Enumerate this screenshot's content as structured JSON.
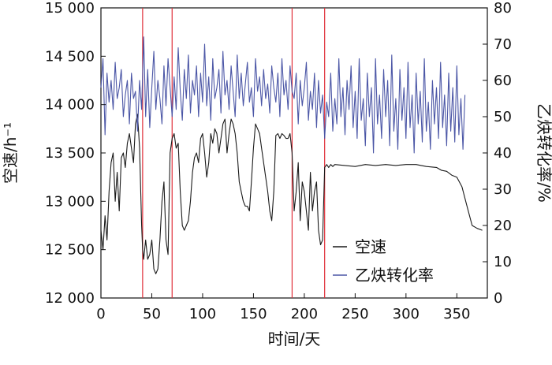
{
  "chart_data": {
    "type": "line",
    "xlabel": "时间/天",
    "ylabel_left": "空速/h⁻¹",
    "ylabel_right": "乙炔转化率/%",
    "xlim": [
      0,
      380
    ],
    "ylim_left": [
      12000,
      15000
    ],
    "ylim_right": [
      0,
      80
    ],
    "x_ticks": [
      "0",
      "50",
      "100",
      "150",
      "200",
      "250",
      "300",
      "350"
    ],
    "y_left_ticks": [
      "12 000",
      "12 500",
      "13 000",
      "13 500",
      "14 000",
      "14 500",
      "15 000"
    ],
    "y_right_ticks": [
      "0",
      "10",
      "20",
      "30",
      "40",
      "50",
      "60",
      "70",
      "80"
    ],
    "grid": false,
    "legend_position": "bottom-right",
    "vertical_markers": [
      41,
      70,
      188,
      220
    ],
    "marker_color": "#e0303a",
    "series": [
      {
        "name": "空速",
        "axis": "left",
        "color": "#1a1a1a",
        "x": [
          0,
          2,
          4,
          6,
          8,
          10,
          12,
          14,
          16,
          18,
          20,
          22,
          24,
          26,
          28,
          30,
          32,
          34,
          36,
          38,
          40,
          41,
          42,
          44,
          46,
          48,
          50,
          52,
          54,
          56,
          58,
          60,
          62,
          64,
          66,
          68,
          70,
          72,
          74,
          76,
          78,
          80,
          82,
          84,
          86,
          88,
          90,
          92,
          94,
          96,
          98,
          100,
          102,
          104,
          106,
          108,
          110,
          112,
          114,
          116,
          118,
          120,
          122,
          124,
          126,
          128,
          130,
          132,
          134,
          136,
          138,
          140,
          142,
          144,
          146,
          148,
          150,
          152,
          154,
          156,
          158,
          160,
          162,
          164,
          166,
          168,
          170,
          172,
          174,
          176,
          178,
          180,
          182,
          184,
          186,
          188,
          190,
          192,
          194,
          196,
          198,
          200,
          202,
          204,
          206,
          208,
          210,
          212,
          214,
          216,
          218,
          220,
          222,
          224,
          226,
          228,
          230,
          240,
          250,
          260,
          270,
          280,
          290,
          300,
          310,
          320,
          330,
          335,
          340,
          345,
          350,
          355,
          360,
          365,
          370,
          375
        ],
        "values": [
          12700,
          12500,
          12850,
          12600,
          13100,
          13400,
          13500,
          13000,
          13300,
          12900,
          13450,
          13500,
          13350,
          13600,
          13700,
          13550,
          13400,
          13800,
          13900,
          13550,
          12750,
          12500,
          12400,
          12600,
          12400,
          12450,
          12600,
          12300,
          12250,
          12300,
          12600,
          13000,
          13200,
          12600,
          12450,
          13500,
          13650,
          13700,
          13550,
          13600,
          13100,
          12750,
          12700,
          12750,
          12800,
          13000,
          13300,
          13450,
          13500,
          13400,
          13650,
          13700,
          13500,
          13250,
          13400,
          13700,
          13600,
          13750,
          13700,
          13500,
          13650,
          13800,
          13850,
          13500,
          13700,
          13850,
          13800,
          13700,
          13500,
          13200,
          13100,
          13000,
          12950,
          12950,
          12900,
          13200,
          13550,
          13800,
          13750,
          13700,
          13550,
          13400,
          13250,
          13100,
          12900,
          12800,
          13100,
          13680,
          13700,
          13650,
          13700,
          13680,
          13650,
          13650,
          13700,
          13500,
          12900,
          13100,
          13400,
          12800,
          13200,
          13100,
          12900,
          12700,
          13300,
          12900,
          13100,
          13200,
          12700,
          12550,
          12600,
          13350,
          13380,
          13350,
          13380,
          13360,
          13380,
          13370,
          13360,
          13380,
          13370,
          13380,
          13370,
          13380,
          13380,
          13360,
          13350,
          13320,
          13310,
          13270,
          13250,
          13150,
          12950,
          12750,
          12720,
          12700
        ]
      },
      {
        "name": "乙炔转化率",
        "axis": "right",
        "color": "#4b56a6",
        "x": [
          0,
          2,
          4,
          6,
          8,
          10,
          12,
          14,
          16,
          18,
          20,
          22,
          24,
          26,
          28,
          30,
          32,
          34,
          36,
          38,
          40,
          42,
          44,
          46,
          48,
          50,
          52,
          54,
          56,
          58,
          60,
          62,
          64,
          66,
          68,
          70,
          72,
          74,
          76,
          78,
          80,
          82,
          84,
          86,
          88,
          90,
          92,
          94,
          96,
          98,
          100,
          102,
          104,
          106,
          108,
          110,
          112,
          114,
          116,
          118,
          120,
          122,
          124,
          126,
          128,
          130,
          132,
          134,
          136,
          138,
          140,
          142,
          144,
          146,
          148,
          150,
          152,
          154,
          156,
          158,
          160,
          162,
          164,
          166,
          168,
          170,
          172,
          174,
          176,
          178,
          180,
          182,
          184,
          186,
          188,
          190,
          192,
          194,
          196,
          198,
          200,
          202,
          204,
          206,
          208,
          210,
          212,
          214,
          216,
          218,
          220,
          222,
          224,
          226,
          228,
          230,
          232,
          234,
          236,
          238,
          240,
          242,
          244,
          246,
          248,
          250,
          252,
          254,
          256,
          258,
          260,
          262,
          264,
          266,
          268,
          270,
          272,
          274,
          276,
          278,
          280,
          282,
          284,
          286,
          288,
          290,
          292,
          294,
          296,
          298,
          300,
          302,
          304,
          306,
          308,
          310,
          312,
          314,
          316,
          318,
          320,
          322,
          324,
          326,
          328,
          330,
          332,
          334,
          336,
          338,
          340,
          342,
          344,
          346,
          348,
          350,
          352,
          354,
          356,
          358
        ],
        "values": [
          58,
          66,
          45,
          62,
          54,
          60,
          52,
          65,
          55,
          58,
          63,
          50,
          56,
          60,
          48,
          62,
          55,
          57,
          46,
          60,
          52,
          72,
          50,
          63,
          47,
          58,
          68,
          52,
          60,
          55,
          48,
          64,
          53,
          66,
          58,
          50,
          61,
          52,
          69,
          57,
          49,
          63,
          55,
          67,
          51,
          60,
          56,
          64,
          50,
          62,
          54,
          70,
          53,
          61,
          49,
          66,
          55,
          58,
          63,
          51,
          68,
          56,
          60,
          52,
          64,
          57,
          50,
          67,
          55,
          62,
          53,
          59,
          65,
          54,
          58,
          50,
          66,
          57,
          61,
          53,
          63,
          55,
          59,
          51,
          64,
          58,
          54,
          62,
          50,
          66,
          56,
          60,
          52,
          64,
          57,
          55,
          62,
          48,
          60,
          53,
          58,
          65,
          49,
          57,
          52,
          62,
          47,
          60,
          51,
          56,
          44,
          54,
          50,
          62,
          46,
          55,
          48,
          66,
          50,
          58,
          45,
          60,
          52,
          64,
          47,
          57,
          44,
          66,
          49,
          55,
          42,
          62,
          50,
          58,
          40,
          66,
          48,
          56,
          44,
          63,
          50,
          60,
          42,
          67,
          46,
          55,
          41,
          63,
          49,
          58,
          44,
          65,
          47,
          56,
          40,
          62,
          48,
          57,
          43,
          66,
          46,
          54,
          41,
          60,
          48,
          58,
          44,
          65,
          47,
          56,
          42,
          62,
          46,
          58,
          43,
          64,
          45,
          55,
          41,
          56
        ]
      }
    ]
  }
}
